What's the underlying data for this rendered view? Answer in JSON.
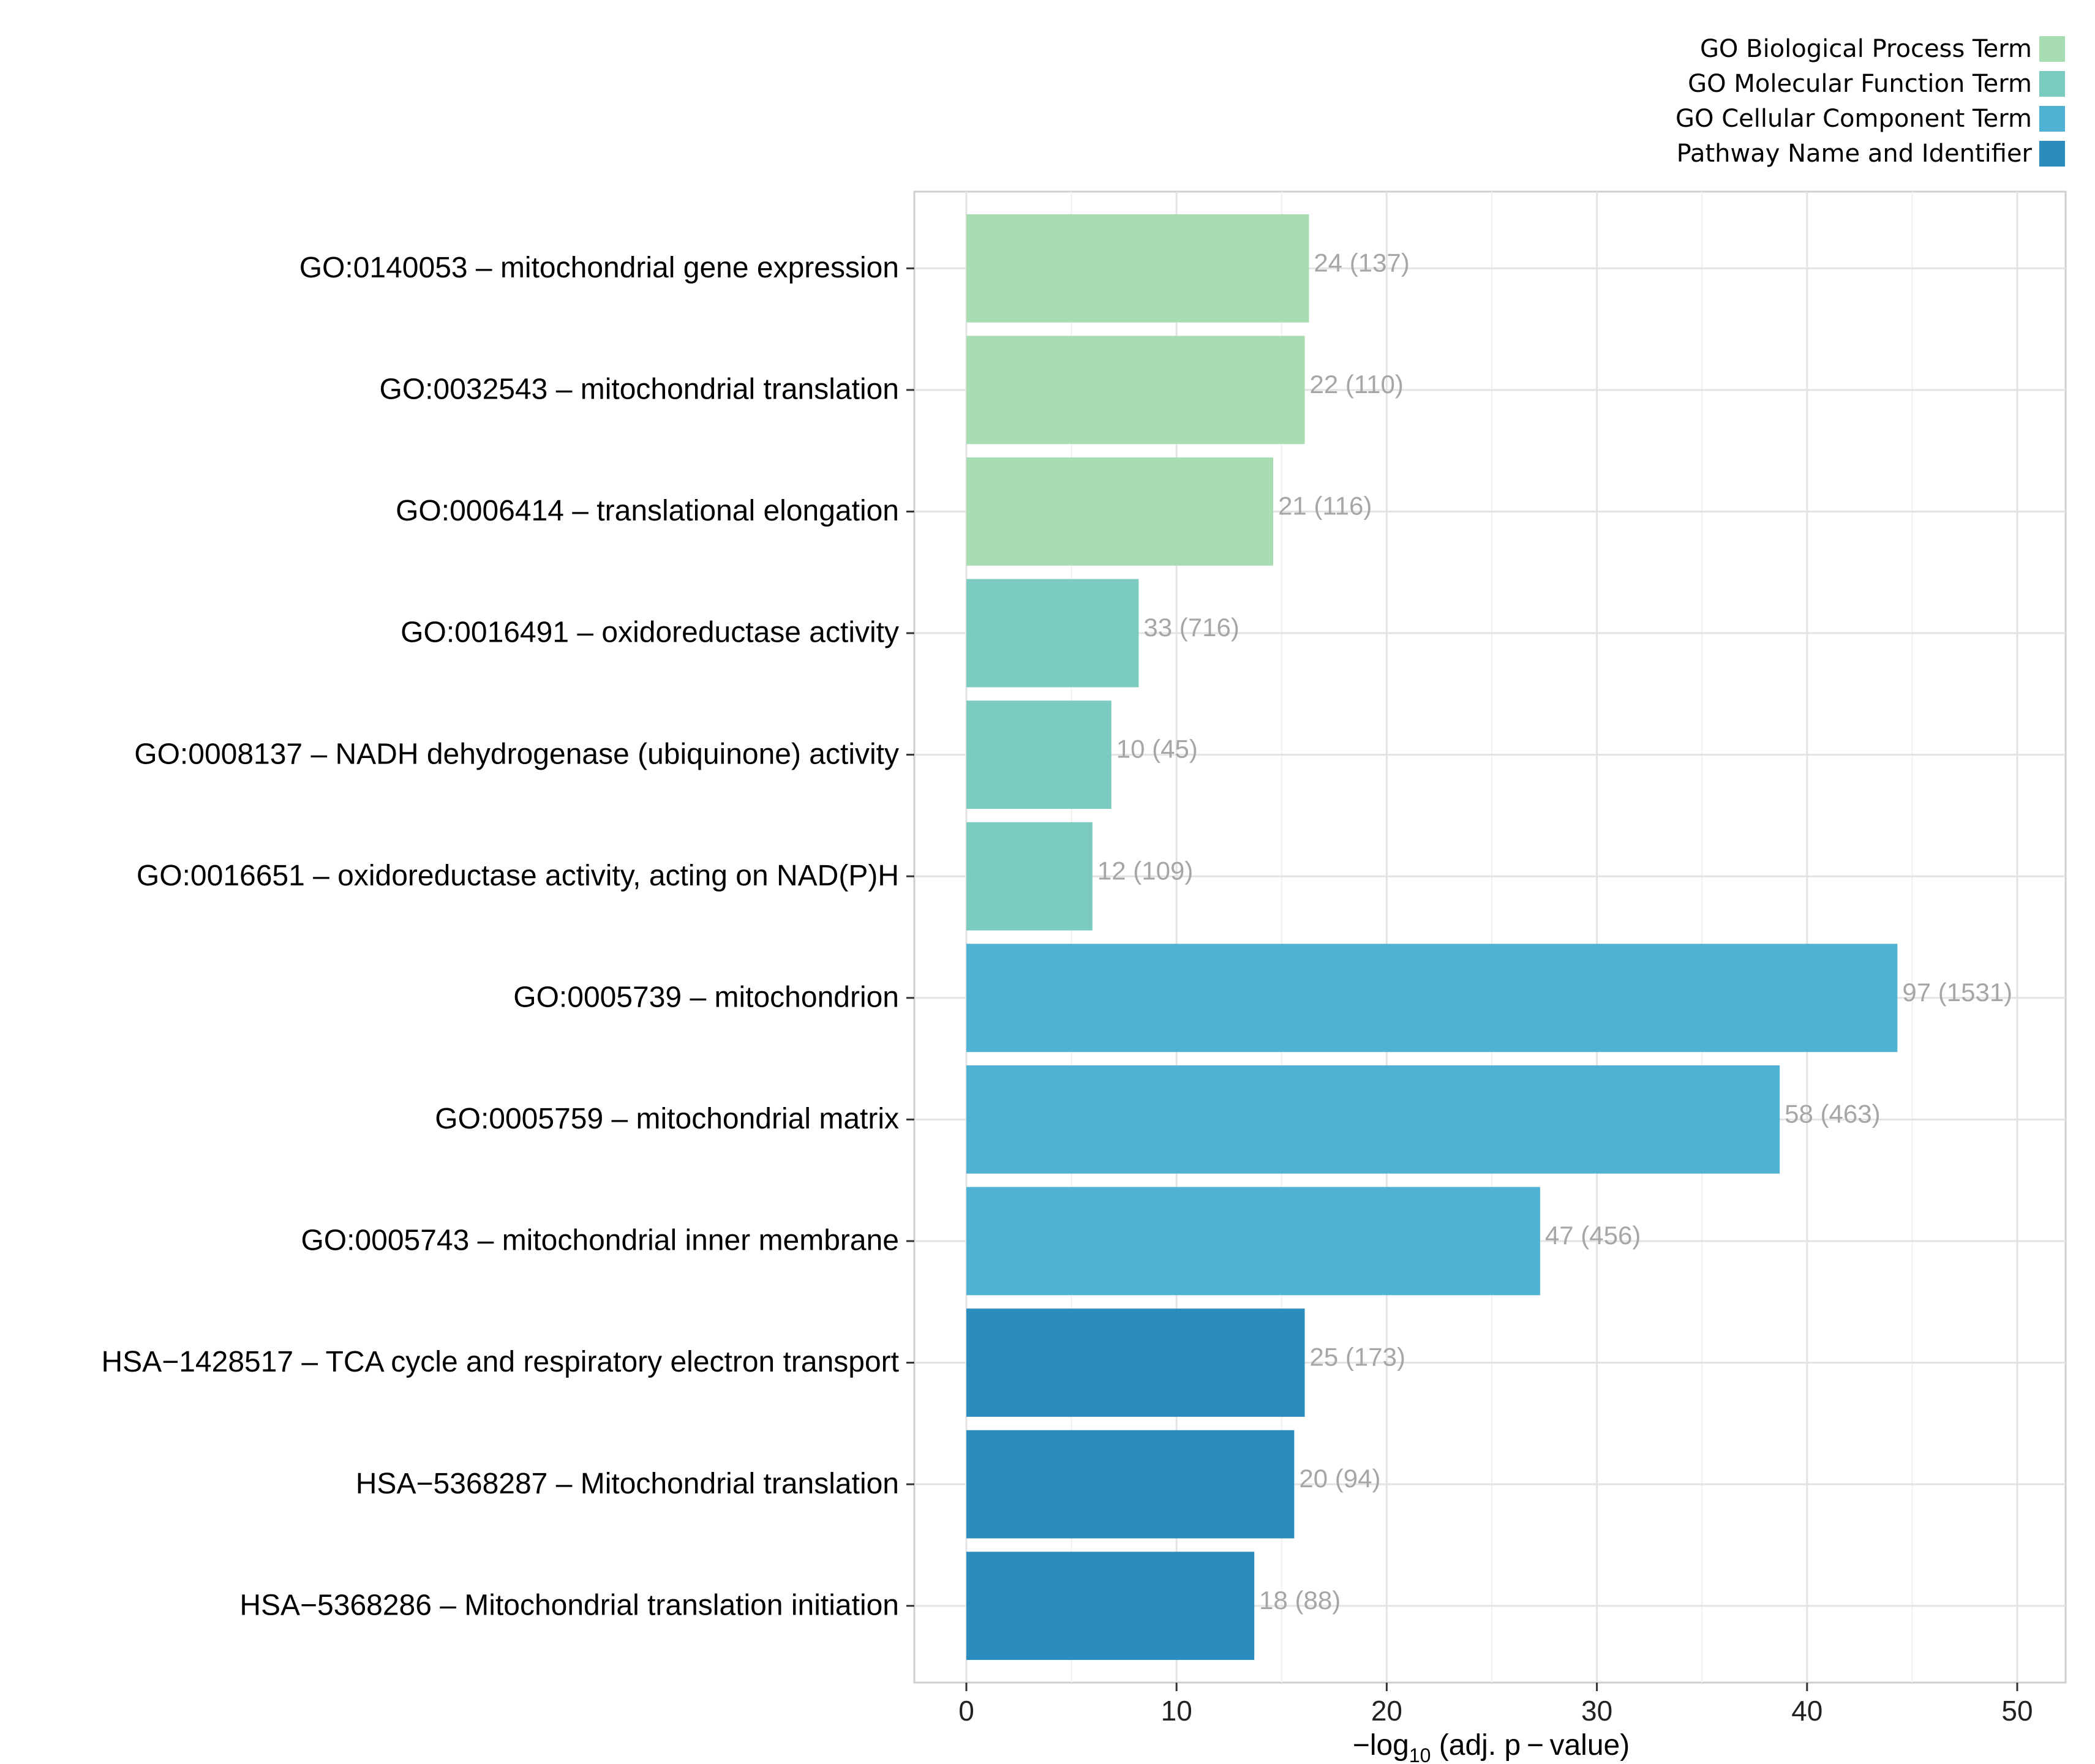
{
  "chart_data": {
    "type": "bar",
    "orientation": "horizontal",
    "title": "",
    "xlabel": {
      "prefix": "−log",
      "subscript": "10",
      "suffix": " (adj. p − value)"
    },
    "ylabel": "",
    "xlim": [
      0,
      52
    ],
    "xticks": [
      0,
      10,
      20,
      30,
      40,
      50
    ],
    "grid": true,
    "legend_position": "top-right",
    "legend": [
      {
        "key": "bp",
        "label": "GO Biological Process Term",
        "color": "#a8dcb3"
      },
      {
        "key": "mf",
        "label": "GO Molecular Function Term",
        "color": "#7bcbc0"
      },
      {
        "key": "cc",
        "label": "GO Cellular Component Term",
        "color": "#4fb2d3"
      },
      {
        "key": "pw",
        "label": "Pathway Name and Identifier",
        "color": "#2b8cbe"
      }
    ],
    "bars": [
      {
        "term": "GO:0140053 – mitochondrial gene expression",
        "category": "bp",
        "value": 16.3,
        "annotation": "24 (137)"
      },
      {
        "term": "GO:0032543 – mitochondrial translation",
        "category": "bp",
        "value": 16.1,
        "annotation": "22 (110)"
      },
      {
        "term": "GO:0006414 – translational elongation",
        "category": "bp",
        "value": 14.6,
        "annotation": "21 (116)"
      },
      {
        "term": "GO:0016491 – oxidoreductase activity",
        "category": "mf",
        "value": 8.2,
        "annotation": "33 (716)"
      },
      {
        "term": "GO:0008137 – NADH dehydrogenase (ubiquinone) activity",
        "category": "mf",
        "value": 6.9,
        "annotation": "10 (45)"
      },
      {
        "term": "GO:0016651 – oxidoreductase activity, acting on NAD(P)H",
        "category": "mf",
        "value": 6.0,
        "annotation": "12 (109)"
      },
      {
        "term": "GO:0005739 – mitochondrion",
        "category": "cc",
        "value": 44.3,
        "annotation": "97 (1531)"
      },
      {
        "term": "GO:0005759 – mitochondrial matrix",
        "category": "cc",
        "value": 38.7,
        "annotation": "58 (463)"
      },
      {
        "term": "GO:0005743 – mitochondrial inner membrane",
        "category": "cc",
        "value": 27.3,
        "annotation": "47 (456)"
      },
      {
        "term": "HSA−1428517 – TCA cycle and respiratory electron transport",
        "category": "pw",
        "value": 16.1,
        "annotation": "25 (173)"
      },
      {
        "term": "HSA−5368287 – Mitochondrial translation",
        "category": "pw",
        "value": 15.6,
        "annotation": "20 (94)"
      },
      {
        "term": "HSA−5368286 – Mitochondrial translation initiation",
        "category": "pw",
        "value": 13.7,
        "annotation": "18 (88)"
      }
    ]
  }
}
